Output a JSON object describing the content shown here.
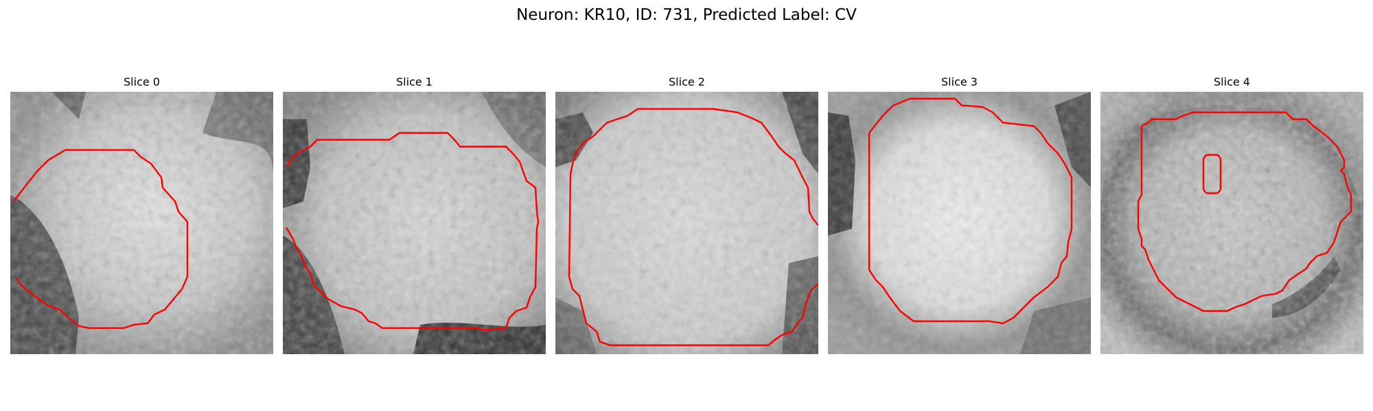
{
  "figure": {
    "title": "Neuron: KR10, ID: 731, Predicted Label: CV",
    "contour_color": "#ff0000"
  },
  "slices": [
    {
      "title": "Slice 0"
    },
    {
      "title": "Slice 1"
    },
    {
      "title": "Slice 2"
    },
    {
      "title": "Slice 3"
    },
    {
      "title": "Slice 4"
    }
  ]
}
